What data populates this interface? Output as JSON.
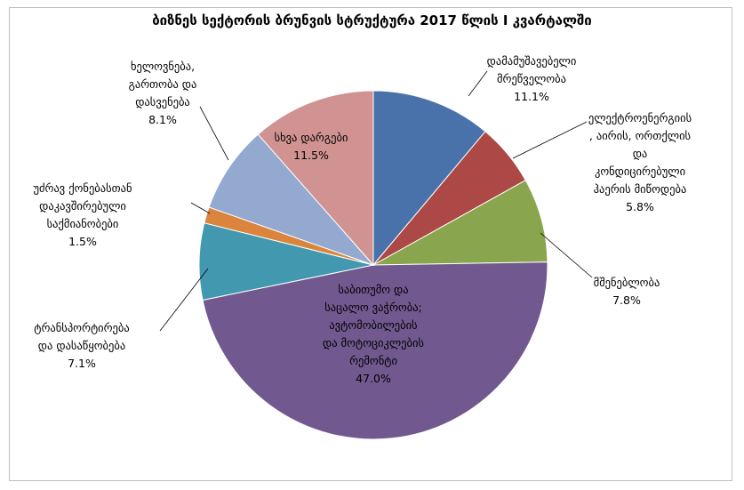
{
  "chart_data": {
    "type": "pie",
    "title": "ბიზნეს სექტორის ბრუნვის სტრუქტურა 2017 წლის I კვარტალში",
    "slices": [
      {
        "name": "დამამუშავებელი მრეწველობა",
        "label_lines": [
          "დამამუშავებელი",
          "მრეწველობა"
        ],
        "value": 11.1,
        "value_label": "11.1%",
        "color": "#4a72aa"
      },
      {
        "name": "ელექტროენერგიის, აირის, ორთქლის და კონდიცირებული ჰაერის მიწოდება",
        "label_lines": [
          "ელექტროენერგიის",
          ", აირის, ორთქლის",
          "და",
          "კონდიცირებული",
          "ჰაერის მიწოდება"
        ],
        "value": 5.8,
        "value_label": "5.8%",
        "color": "#ac4845"
      },
      {
        "name": "მშენებლობა",
        "label_lines": [
          "მშენებლობა"
        ],
        "value": 7.8,
        "value_label": "7.8%",
        "color": "#89a54e"
      },
      {
        "name": "საბითუმო და საცალო ვაჭრობა; ავტომობილების და მოტოციკლების რემონტი",
        "label_lines": [
          "საბითუმო და",
          "საცალო ვაჭრობა;",
          "ავტომობილების",
          "და მოტოციკლების",
          "რემონტი"
        ],
        "value": 47.0,
        "value_label": "47.0%",
        "color": "#71588f"
      },
      {
        "name": "ტრანსპორტირება და დასაწყობება",
        "label_lines": [
          "ტრანსპორტირება",
          "და დასაწყობება"
        ],
        "value": 7.1,
        "value_label": "7.1%",
        "color": "#4198af"
      },
      {
        "name": "უძრავ ქონებასთან დაკავშირებული საქმიანობები",
        "label_lines": [
          "უძრავ ქონებასთან",
          "დაკავშირებული",
          "საქმიანობები"
        ],
        "value": 1.5,
        "value_label": "1.5%",
        "color": "#db843d"
      },
      {
        "name": "ხელოვნება, გართობა და დასვენება",
        "label_lines": [
          "ხელოვნება,",
          "გართობა და",
          "დასვენება"
        ],
        "value": 8.1,
        "value_label": "8.1%",
        "color": "#93a9cf"
      },
      {
        "name": "სხვა დარგები",
        "label_lines": [
          "სხვა დარგები"
        ],
        "value": 11.5,
        "value_label": "11.5%",
        "color": "#d19392"
      }
    ]
  }
}
